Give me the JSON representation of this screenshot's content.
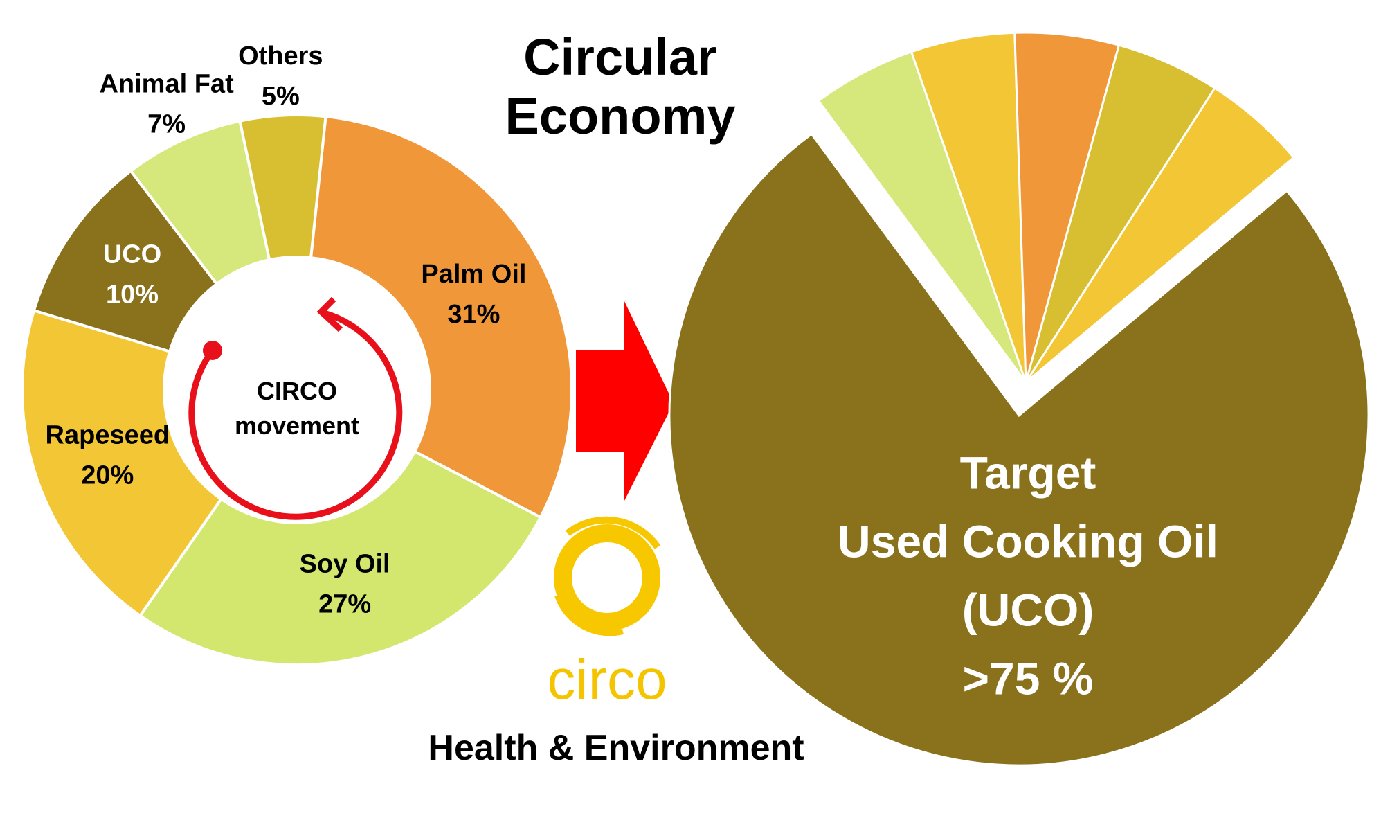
{
  "title": "Circular Economy",
  "chart_data": [
    {
      "type": "donut",
      "categories": [
        "Palm Oil",
        "Soy Oil",
        "Rapeseed",
        "UCO",
        "Animal Fat",
        "Others"
      ],
      "values": [
        31,
        27,
        20,
        10,
        7,
        5
      ],
      "value_labels": [
        "31%",
        "27%",
        "20%",
        "10%",
        "7%",
        "5%"
      ],
      "colors": [
        "#f0973a",
        "#d3e66e",
        "#f3c636",
        "#8a721c",
        "#d6e87c",
        "#d7bf31"
      ],
      "center_label": "CIRCO movement"
    },
    {
      "type": "pie",
      "values": [
        76,
        4.8,
        4.8,
        4.8,
        4.8,
        4.8
      ],
      "colors": [
        "#8a721c",
        "#d6e87c",
        "#f3c636",
        "#f0973a",
        "#d7bf31",
        "#f3c636"
      ],
      "annotation": [
        "Target",
        "Used Cooking Oil",
        "(UCO)",
        ">75 %"
      ]
    }
  ],
  "logo": "circo",
  "tagline": "Health & Environment"
}
